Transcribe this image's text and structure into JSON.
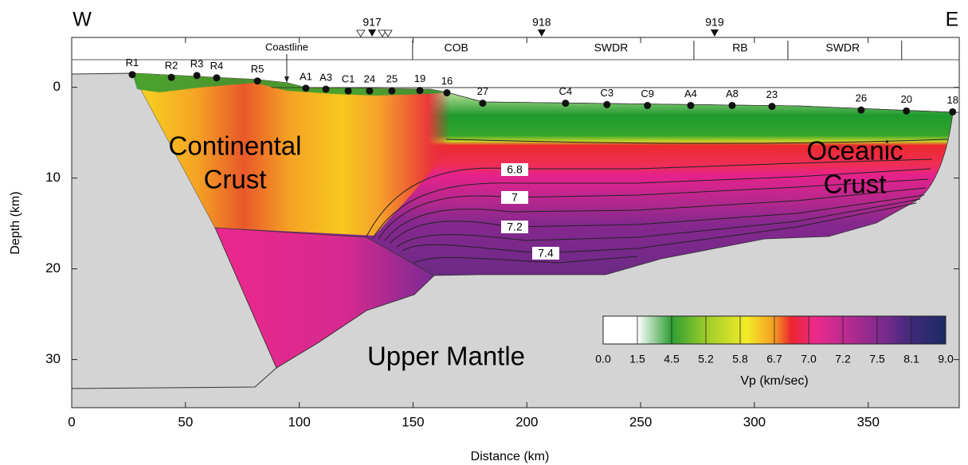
{
  "chart_data": {
    "type": "cross-section",
    "x_label": "Distance (km)",
    "y_label": "Depth (km)",
    "xlim": [
      0,
      390
    ],
    "ylim": [
      -5.5,
      35.3
    ],
    "y_inverted": true,
    "xticks": [
      0,
      50,
      100,
      150,
      200,
      250,
      300,
      350
    ],
    "yticks": [
      0,
      10,
      20,
      30
    ],
    "direction_labels": {
      "left": "W",
      "right": "E"
    },
    "region_labels": {
      "continental": [
        "Continental",
        "Crust"
      ],
      "oceanic": [
        "Oceanic",
        "Crust"
      ],
      "mantle": "Upper Mantle"
    },
    "coastline": {
      "label": "Coastline",
      "x": 94.5
    },
    "zone_boundaries_x": [
      149.8,
      273.4,
      314.7,
      364.7
    ],
    "zones": [
      {
        "name": "COB",
        "x": 169
      },
      {
        "name": "SWDR",
        "x": 237
      },
      {
        "name": "RB",
        "x": 293.7
      },
      {
        "name": "SWDR",
        "x": 338.8
      }
    ],
    "obs": [
      {
        "name": "917",
        "x": 132
      },
      {
        "name": "918",
        "x": 206.5
      },
      {
        "name": "919",
        "x": 282.5
      }
    ],
    "open_triangles_x": [
      127,
      136.5,
      139
    ],
    "stations": [
      {
        "name": "R1",
        "x": 26.6,
        "depth": -1.4
      },
      {
        "name": "R2",
        "x": 43.8,
        "depth": -1.1
      },
      {
        "name": "R3",
        "x": 55,
        "depth": -1.3
      },
      {
        "name": "R4",
        "x": 63.7,
        "depth": -1.05
      },
      {
        "name": "R5",
        "x": 81.6,
        "depth": -0.7
      },
      {
        "name": "A1",
        "x": 102.9,
        "depth": 0.1
      },
      {
        "name": "A3",
        "x": 111.7,
        "depth": 0.2
      },
      {
        "name": "C1",
        "x": 121.5,
        "depth": 0.4
      },
      {
        "name": "24",
        "x": 130.9,
        "depth": 0.4
      },
      {
        "name": "25",
        "x": 140.7,
        "depth": 0.4
      },
      {
        "name": "19",
        "x": 153,
        "depth": 0.35
      },
      {
        "name": "16",
        "x": 164.9,
        "depth": 0.6
      },
      {
        "name": "27",
        "x": 180.6,
        "depth": 1.75
      },
      {
        "name": "C4",
        "x": 217,
        "depth": 1.75
      },
      {
        "name": "C3",
        "x": 235.2,
        "depth": 1.9
      },
      {
        "name": "C9",
        "x": 253,
        "depth": 2.0
      },
      {
        "name": "A4",
        "x": 272,
        "depth": 2.0
      },
      {
        "name": "A8",
        "x": 290.2,
        "depth": 2.0
      },
      {
        "name": "23",
        "x": 307.7,
        "depth": 2.1
      },
      {
        "name": "26",
        "x": 346.9,
        "depth": 2.5
      },
      {
        "name": "20",
        "x": 366.8,
        "depth": 2.6
      },
      {
        "name": "18",
        "x": 387.1,
        "depth": 2.7
      }
    ],
    "contour_labels": [
      6.8,
      7,
      7.2,
      7.4
    ],
    "colorbar": {
      "title": "Vp (km/sec)",
      "ticks": [
        {
          "value": 0,
          "label": "0.0"
        },
        1.5,
        4.5,
        5.2,
        5.8,
        6.7,
        {
          "value": 7,
          "label": "7.0"
        },
        7.2,
        7.5,
        8.1,
        {
          "value": 9,
          "label": "9.0"
        }
      ]
    }
  }
}
